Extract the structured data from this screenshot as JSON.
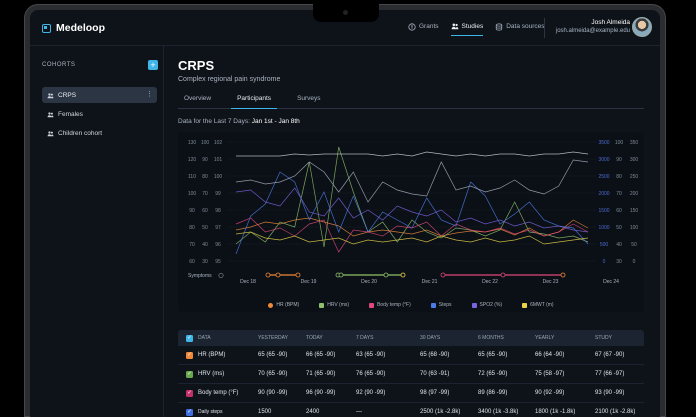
{
  "app": {
    "name": "Medeloop"
  },
  "nav": {
    "items": [
      {
        "label": "Grants",
        "icon": "money-icon",
        "active": false
      },
      {
        "label": "Studies",
        "icon": "people-icon",
        "active": true
      },
      {
        "label": "Data sources",
        "icon": "database-icon",
        "active": false
      }
    ]
  },
  "user": {
    "name": "Josh Almeida",
    "email": "josh.almeida@example.edu"
  },
  "sidebar": {
    "heading": "COHORTS",
    "items": [
      {
        "label": "CRPS",
        "active": true
      },
      {
        "label": "Females",
        "active": false
      },
      {
        "label": "Children cohort",
        "active": false
      }
    ]
  },
  "page": {
    "title": "CRPS",
    "subtitle": "Complex regional pain syndrome",
    "tabs": [
      {
        "label": "Overview",
        "active": false
      },
      {
        "label": "Participants",
        "active": true
      },
      {
        "label": "Surveys",
        "active": false
      }
    ],
    "range_label": "Data for the Last 7 Days:",
    "range_value": "Jan 1st - Jan 8th"
  },
  "chart_data": {
    "type": "line",
    "x": [
      "Dec 18",
      "Dec 19",
      "Dec 20",
      "Dec 21",
      "Dec 22",
      "Dec 23",
      "Dec 24"
    ],
    "symptoms_label": "Symptoms",
    "left_axes": [
      [
        "130",
        "120",
        "110",
        "100",
        "90",
        "80",
        "70",
        "60"
      ],
      [
        "100",
        "90",
        "80",
        "70",
        "60",
        "50",
        "40",
        "30"
      ],
      [
        "102",
        "101",
        "100",
        "99",
        "98",
        "97",
        "96",
        "95"
      ]
    ],
    "right_axes": [
      [
        "3500",
        "3000",
        "2500",
        "2000",
        "1500",
        "1000",
        "500",
        "0"
      ],
      [
        "100",
        "90",
        "80",
        "70",
        "60",
        "50",
        "40",
        "30"
      ],
      [
        "350",
        "300",
        "250",
        "200",
        "150",
        "100",
        "50",
        "0"
      ]
    ],
    "series": [
      {
        "name": "HR (BPM)",
        "color": "#f0893a"
      },
      {
        "name": "HRV (ms)",
        "color": "#8fbf6a"
      },
      {
        "name": "Body temp (°F)",
        "color": "#e0477a"
      },
      {
        "name": "Steps",
        "color": "#4c7be8"
      },
      {
        "name": "SPO2 (%)",
        "color": "#7b63e0"
      },
      {
        "name": "6MWT (m)",
        "color": "#e8d24a"
      }
    ]
  },
  "table": {
    "columns": [
      "DATA",
      "YESTERDAY",
      "TODAY",
      "7 DAYS",
      "30 DAYS",
      "6 MONTHS",
      "YEARLY",
      "STUDY"
    ],
    "rows": [
      {
        "label": "HR (BPM)",
        "color": "#f0893a",
        "cells": [
          "65 (65 -90)",
          "66 (65 -90)",
          "63 (65 -90)",
          "65 (68 -90)",
          "65 (65 -90)",
          "66 (64 -90)",
          "67 (67 -90)"
        ]
      },
      {
        "label": "HRV (ms)",
        "color": "#6aa84f",
        "cells": [
          "70 (65 -90)",
          "71 (65 -90)",
          "76 (65 -90)",
          "70 (63 -91)",
          "72 (65 -90)",
          "75 (58 -97)",
          "77 (66 -97)"
        ]
      },
      {
        "label": "Body temp (°F)",
        "color": "#c2306a",
        "cells": [
          "90 (90 -99)",
          "96 (90 -99)",
          "92 (90 -99)",
          "98 (97 -99)",
          "89 (86 -99)",
          "90 (92 -99)",
          "93 (90 -99)"
        ]
      },
      {
        "label": "Daily steps",
        "color": "#3f6fe0",
        "cells": [
          "1500",
          "2400",
          "—",
          "2500 (1k -2.8k)",
          "3400 (1k -3.8k)",
          "1800 (1k -1.8k)",
          "2100 (1k -2.8k)"
        ]
      }
    ]
  }
}
